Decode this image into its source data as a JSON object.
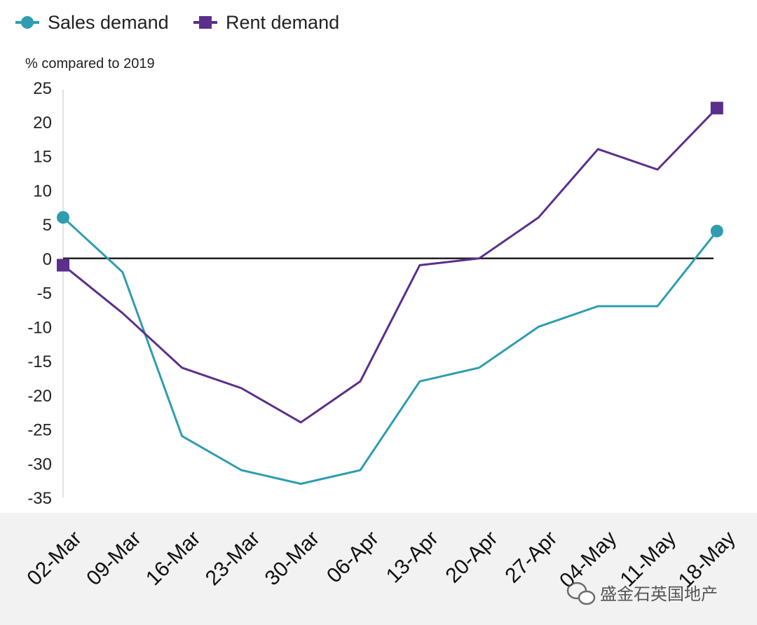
{
  "chart_data": {
    "type": "line",
    "ylabel": "% compared to 2019",
    "categories": [
      "02-Mar",
      "09-Mar",
      "16-Mar",
      "23-Mar",
      "30-Mar",
      "06-Apr",
      "13-Apr",
      "20-Apr",
      "27-Apr",
      "04-May",
      "11-May",
      "18-May"
    ],
    "yticks": [
      "25",
      "20",
      "15",
      "10",
      "5",
      "0",
      "-5",
      "-10",
      "-15",
      "-20",
      "-25",
      "-30",
      "-35"
    ],
    "ylim": [
      -35,
      25
    ],
    "legend_position": "top-left",
    "series": [
      {
        "name": "Sales demand",
        "color": "#2E9DAF",
        "marker": "circle",
        "values": [
          6,
          -2,
          -26,
          -31,
          -33,
          -31,
          -18,
          -16,
          -10,
          -7,
          -7,
          4
        ]
      },
      {
        "name": "Rent demand",
        "color": "#5B2F8C",
        "marker": "square",
        "values": [
          -1,
          -8,
          -16,
          -19,
          -24,
          -18,
          -1,
          0,
          6,
          16,
          13,
          22
        ]
      }
    ],
    "zero_line": true
  },
  "watermark": {
    "text": "盛金石英国地产",
    "icon": "wechat-icon"
  }
}
